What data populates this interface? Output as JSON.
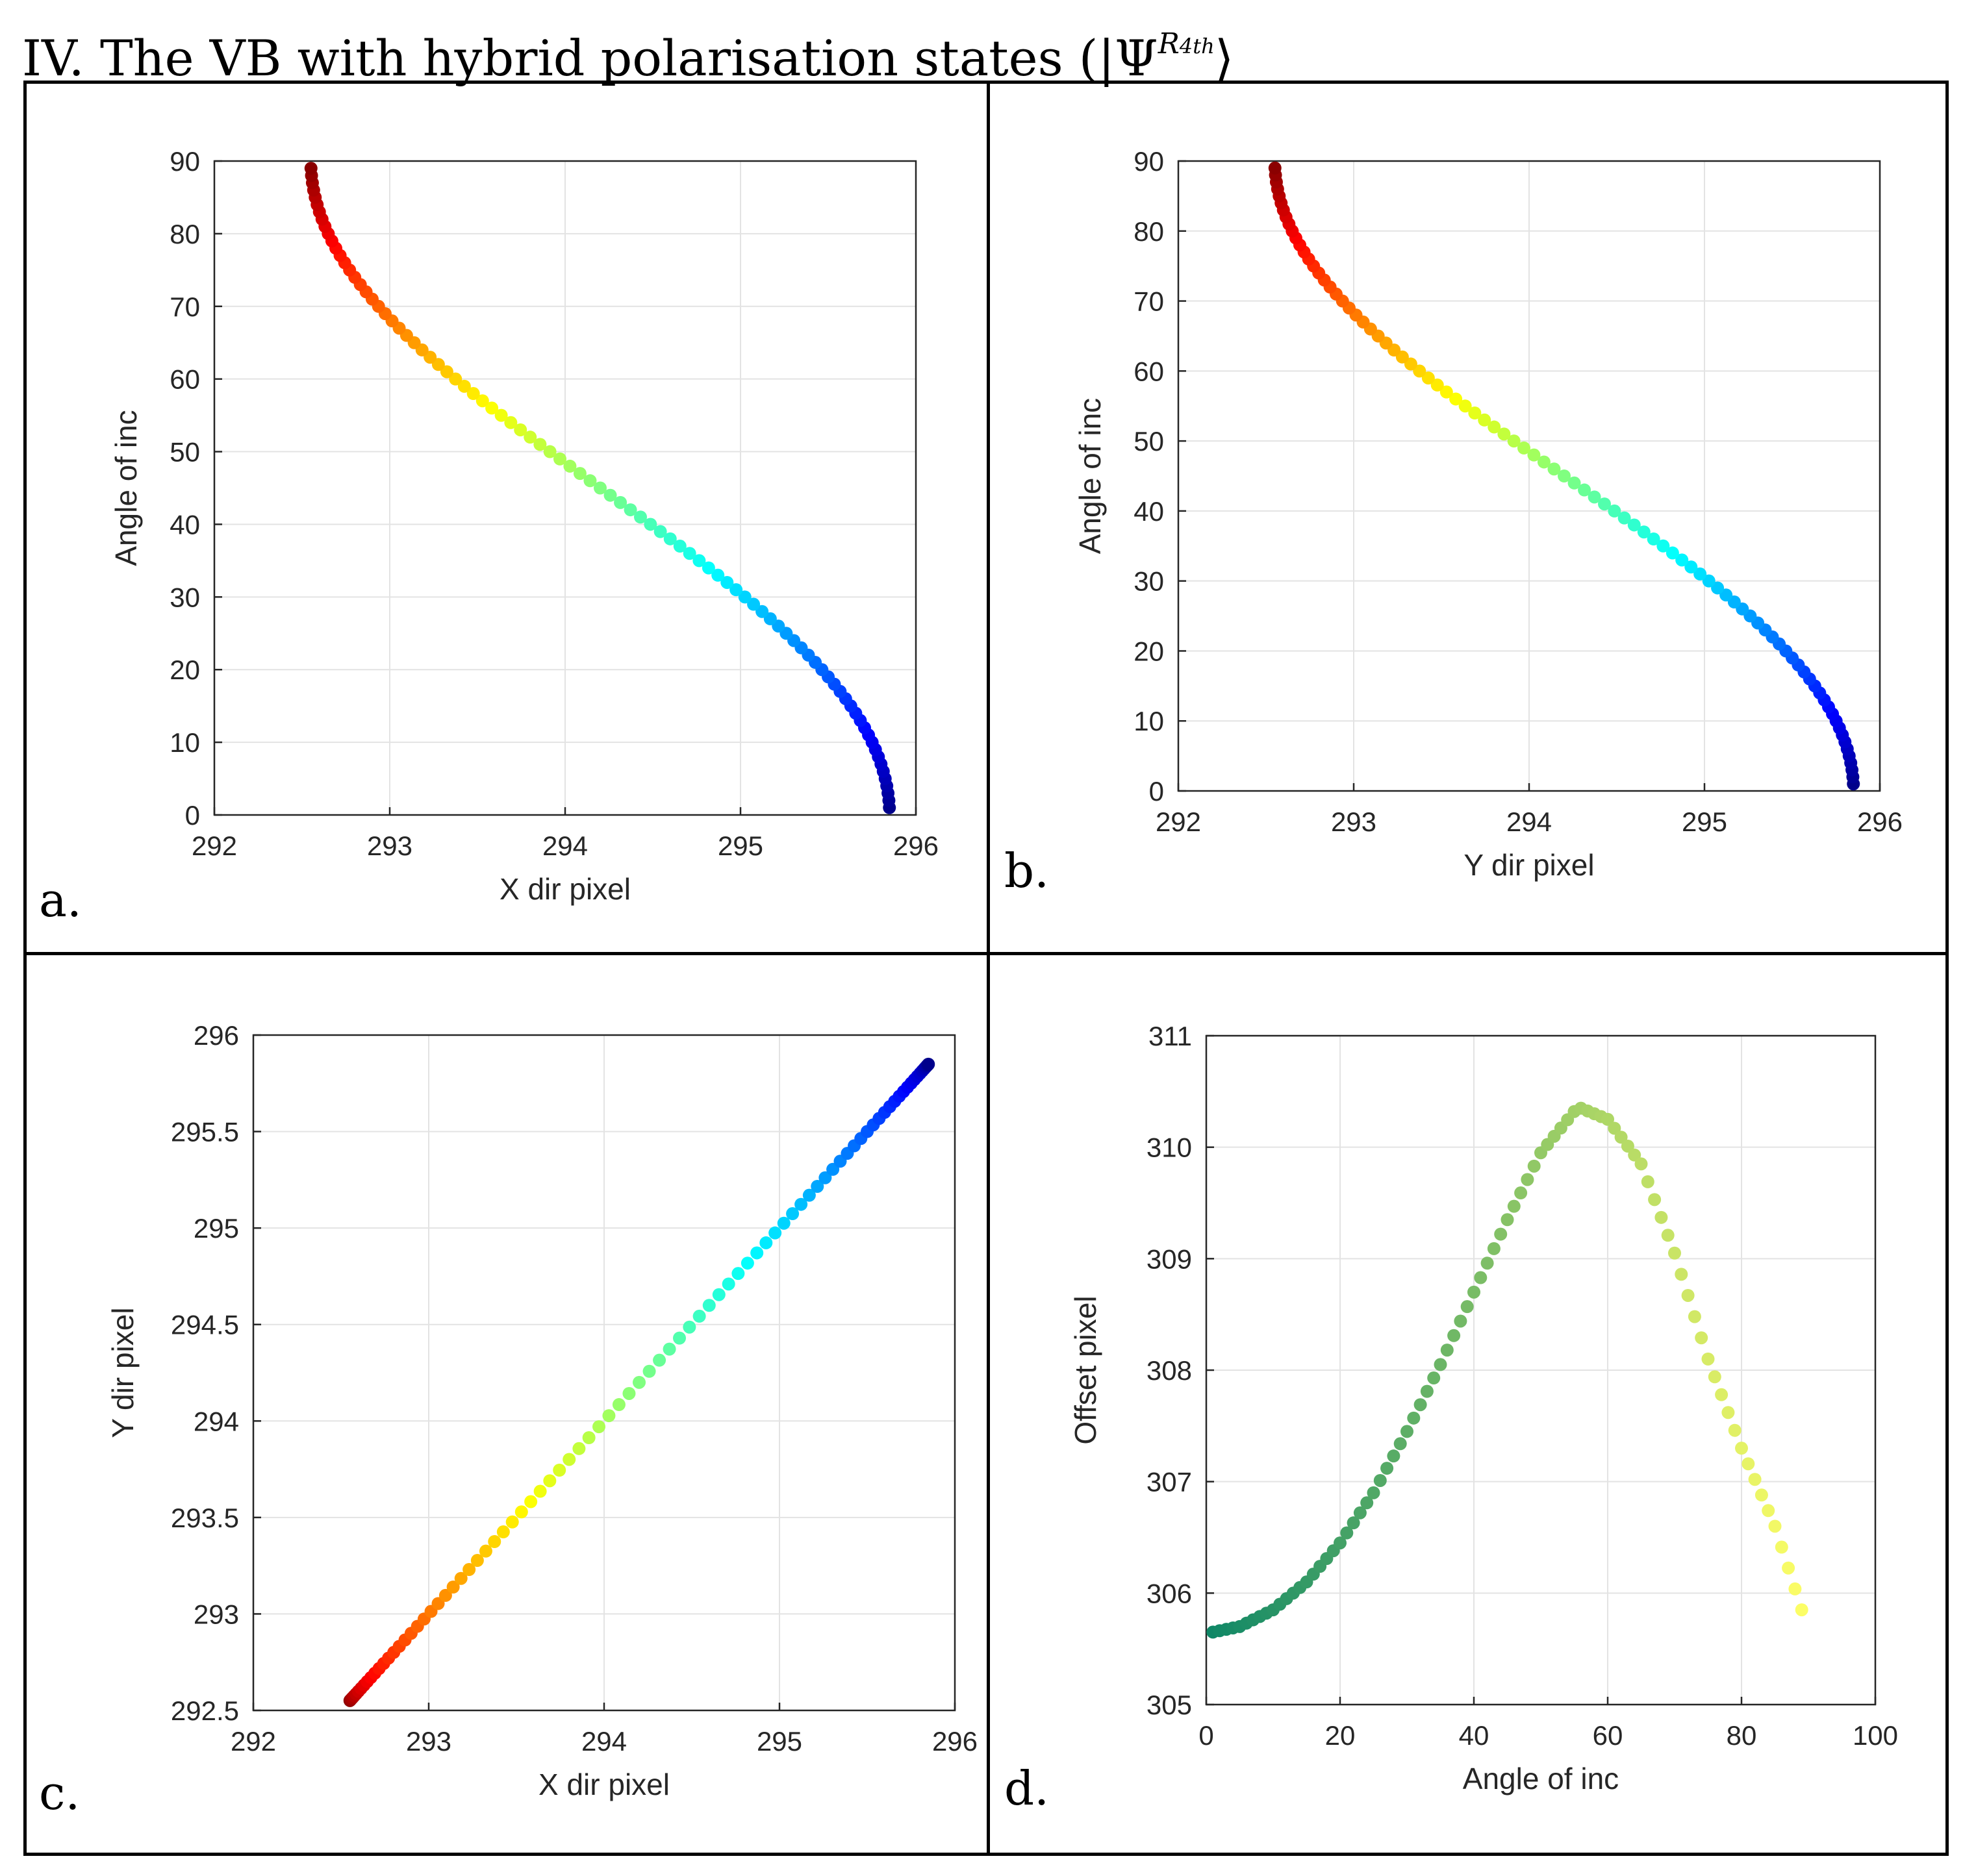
{
  "figure": {
    "title_prefix": "IV. The VB with hybrid polarisation states (|Ψ",
    "title_sup_main": "R",
    "title_sup_sub": "4th",
    "title_suffix": "⟩"
  },
  "panels": [
    {
      "letter": "a."
    },
    {
      "letter": "b."
    },
    {
      "letter": "c."
    },
    {
      "letter": "d."
    }
  ],
  "chart_data": [
    {
      "id": "a",
      "type": "scatter",
      "title": "",
      "xlabel": "X dir pixel",
      "ylabel": "Angle of inc",
      "xlim": [
        292,
        296
      ],
      "ylim": [
        0,
        90
      ],
      "xticks": [
        292,
        293,
        294,
        295,
        296
      ],
      "yticks": [
        0,
        10,
        20,
        30,
        40,
        50,
        60,
        70,
        80,
        90
      ],
      "grid": true,
      "colormap": "jet (by angle of incidence)",
      "curve": "x = 294.2 + 1.65*cos(2*angle_deg), angle = 1..89 step 1",
      "points": {
        "angle_deg": [
          1,
          2,
          3,
          4,
          5,
          6,
          7,
          8,
          9,
          10,
          11,
          12,
          13,
          14,
          15,
          16,
          17,
          18,
          19,
          20,
          21,
          22,
          23,
          24,
          25,
          26,
          27,
          28,
          29,
          30,
          31,
          32,
          33,
          34,
          35,
          36,
          37,
          38,
          39,
          40,
          41,
          42,
          43,
          44,
          45,
          46,
          47,
          48,
          49,
          50,
          51,
          52,
          53,
          54,
          55,
          56,
          57,
          58,
          59,
          60,
          61,
          62,
          63,
          64,
          65,
          66,
          67,
          68,
          69,
          70,
          71,
          72,
          73,
          74,
          75,
          76,
          77,
          78,
          79,
          80,
          81,
          82,
          83,
          84,
          85,
          86,
          87,
          88,
          89
        ],
        "x_center": 294.2,
        "x_amplitude": 1.65
      }
    },
    {
      "id": "b",
      "type": "scatter",
      "title": "",
      "xlabel": "Y dir pixel",
      "ylabel": "Angle of inc",
      "xlim": [
        292,
        296
      ],
      "ylim": [
        0,
        90
      ],
      "xticks": [
        292,
        293,
        294,
        295,
        296
      ],
      "yticks": [
        0,
        10,
        20,
        30,
        40,
        50,
        60,
        70,
        80,
        90
      ],
      "grid": true,
      "colormap": "jet (by angle of incidence)",
      "curve": "y = 294.2 + 1.65*cos(2*angle_deg), angle = 1..89 step 1",
      "points": {
        "x_center": 294.2,
        "x_amplitude": 1.65
      }
    },
    {
      "id": "c",
      "type": "scatter",
      "title": "",
      "xlabel": "X dir pixel",
      "ylabel": "Y dir pixel",
      "xlim": [
        292,
        296
      ],
      "ylim": [
        292.5,
        296
      ],
      "xticks": [
        292,
        293,
        294,
        295,
        296
      ],
      "yticks": [
        292.5,
        293,
        293.5,
        294,
        294.5,
        295,
        295.5,
        296
      ],
      "ytick_labels": [
        "292.5",
        "293",
        "293.5",
        "294",
        "294.5",
        "295",
        "295.5",
        "296"
      ],
      "grid": true,
      "colormap": "jet (by angle of incidence)",
      "curve": "x = y = 294.2 + 1.65*cos(2*angle_deg), angle = 1..89 step 1"
    },
    {
      "id": "d",
      "type": "scatter",
      "title": "",
      "xlabel": "Angle of inc",
      "ylabel": "Offset pixel",
      "xlim": [
        0,
        100
      ],
      "ylim": [
        305,
        311
      ],
      "xticks": [
        0,
        20,
        40,
        60,
        80,
        100
      ],
      "yticks": [
        305,
        306,
        307,
        308,
        309,
        310,
        311
      ],
      "grid": true,
      "colormap": "summer (by angle of incidence)",
      "curve": "offset = 305.65 + 4.7*((1 - cos(2*angle_deg))/2)^1.28 roughly, peak 310.35 at 56 deg, 305.85 at 89 deg",
      "series": [
        {
          "name": "Offset",
          "x": [
            1,
            5,
            10,
            15,
            20,
            25,
            30,
            35,
            40,
            45,
            50,
            55,
            56,
            60,
            65,
            70,
            75,
            80,
            85,
            89
          ],
          "y": [
            305.65,
            305.7,
            305.85,
            306.1,
            306.45,
            306.9,
            307.45,
            308.05,
            308.7,
            309.35,
            309.95,
            310.32,
            310.35,
            310.25,
            309.85,
            309.05,
            308.1,
            307.3,
            306.6,
            305.85
          ]
        }
      ]
    }
  ],
  "colors": {
    "grid": "#e3e3e3",
    "axis": "#262626",
    "text": "#262626"
  }
}
